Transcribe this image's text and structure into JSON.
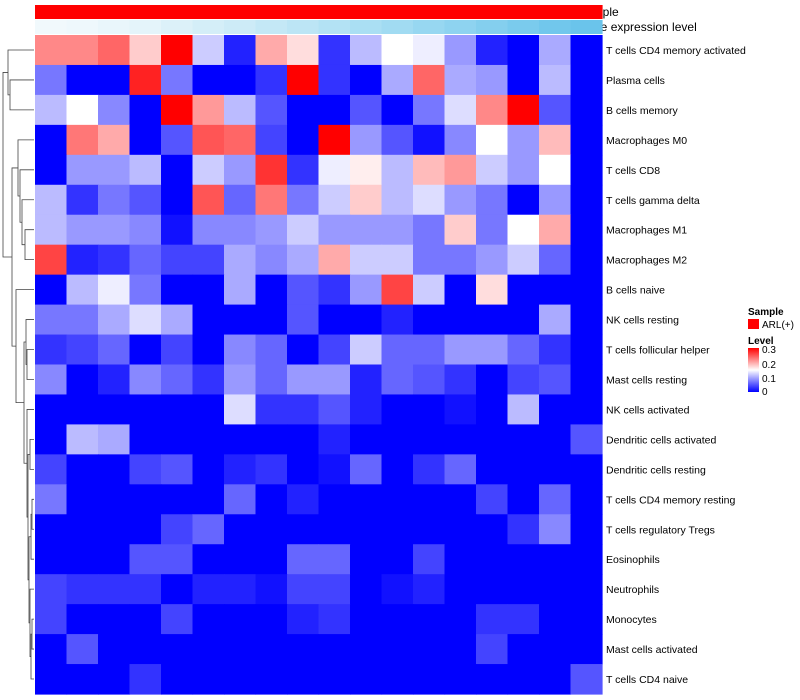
{
  "chart_data": {
    "type": "heatmap",
    "annotation_tracks": [
      {
        "name": "Sample",
        "colors": [
          "#ff0000",
          "#ff0000",
          "#ff0000",
          "#ff0000",
          "#ff0000",
          "#ff0000",
          "#ff0000",
          "#ff0000",
          "#ff0000",
          "#ff0000",
          "#ff0000",
          "#ff0000",
          "#ff0000",
          "#ff0000",
          "#ff0000",
          "#ff0000",
          "#ff0000",
          "#ff0000"
        ]
      },
      {
        "name": "Gene expression level",
        "colors": [
          "#f1f9fc",
          "#eef8fc",
          "#e9f6fb",
          "#e4f4fa",
          "#dcf1f9",
          "#d4eef8",
          "#cdebf7",
          "#c4e8f6",
          "#bce5f5",
          "#b3e2f4",
          "#aadff3",
          "#a1dbf2",
          "#97d7f1",
          "#8ed3f0",
          "#84cfee",
          "#7acbed",
          "#71c7ec",
          "#6ac4eb"
        ]
      }
    ],
    "rows": [
      "T cells CD4 memory activated",
      "Plasma cells",
      "B cells memory",
      "Macrophages M0",
      "T cells CD8",
      "T cells gamma delta",
      "Macrophages M1",
      "Macrophages M2",
      "B cells naive",
      "NK cells resting",
      "T cells follicular helper",
      "Mast cells resting",
      "NK cells activated",
      "Dendritic cells activated",
      "Dendritic cells resting",
      "T cells CD4 memory resting",
      "T cells regulatory  Tregs",
      "Eosinophils",
      "Neutrophils",
      "Monocytes",
      "Mast cells activated",
      "T cells CD4 naive"
    ],
    "values": [
      [
        0.22,
        0.22,
        0.24,
        0.18,
        0.3,
        0.12,
        0.02,
        0.2,
        0.17,
        0.03,
        0.11,
        0.15,
        0.14,
        0.09,
        0.02,
        0.0,
        0.1,
        0.0
      ],
      [
        0.07,
        0.0,
        0.0,
        0.28,
        0.07,
        0.0,
        0.0,
        0.03,
        0.3,
        0.03,
        0.0,
        0.1,
        0.24,
        0.1,
        0.09,
        0.0,
        0.11,
        0.0
      ],
      [
        0.11,
        0.15,
        0.08,
        0.0,
        0.3,
        0.21,
        0.11,
        0.05,
        0.0,
        0.0,
        0.05,
        0.0,
        0.07,
        0.13,
        0.22,
        0.3,
        0.05,
        0.0
      ],
      [
        0.0,
        0.23,
        0.2,
        0.0,
        0.05,
        0.25,
        0.24,
        0.04,
        0.0,
        0.3,
        0.09,
        0.05,
        0.01,
        0.08,
        0.15,
        0.09,
        0.19,
        0.0
      ],
      [
        0.0,
        0.09,
        0.09,
        0.11,
        0.0,
        0.12,
        0.09,
        0.27,
        0.03,
        0.14,
        0.16,
        0.11,
        0.19,
        0.21,
        0.12,
        0.09,
        0.15,
        0.0
      ],
      [
        0.11,
        0.03,
        0.07,
        0.05,
        0.0,
        0.25,
        0.06,
        0.23,
        0.07,
        0.12,
        0.18,
        0.11,
        0.13,
        0.09,
        0.07,
        0.0,
        0.09,
        0.0
      ],
      [
        0.11,
        0.09,
        0.09,
        0.08,
        0.01,
        0.08,
        0.08,
        0.09,
        0.12,
        0.09,
        0.09,
        0.09,
        0.07,
        0.18,
        0.07,
        0.15,
        0.2,
        0.0
      ],
      [
        0.26,
        0.02,
        0.03,
        0.06,
        0.04,
        0.04,
        0.1,
        0.08,
        0.1,
        0.2,
        0.12,
        0.12,
        0.07,
        0.07,
        0.09,
        0.12,
        0.06,
        0.0
      ],
      [
        0.0,
        0.11,
        0.14,
        0.07,
        0.0,
        0.0,
        0.1,
        0.0,
        0.05,
        0.03,
        0.09,
        0.26,
        0.12,
        0.0,
        0.17,
        0.0,
        0.0,
        0.0
      ],
      [
        0.07,
        0.07,
        0.1,
        0.13,
        0.1,
        0.0,
        0.0,
        0.0,
        0.05,
        0.0,
        0.0,
        0.02,
        0.0,
        0.0,
        0.0,
        0.0,
        0.1,
        0.0
      ],
      [
        0.03,
        0.04,
        0.06,
        0.0,
        0.04,
        0.0,
        0.08,
        0.06,
        0.0,
        0.04,
        0.12,
        0.06,
        0.06,
        0.09,
        0.09,
        0.06,
        0.03,
        0.0
      ],
      [
        0.08,
        0.0,
        0.02,
        0.08,
        0.06,
        0.03,
        0.09,
        0.06,
        0.09,
        0.09,
        0.02,
        0.06,
        0.05,
        0.03,
        0.0,
        0.04,
        0.05,
        0.0
      ],
      [
        0.0,
        0.0,
        0.0,
        0.0,
        0.0,
        0.0,
        0.13,
        0.03,
        0.03,
        0.05,
        0.02,
        0.0,
        0.0,
        0.01,
        0.0,
        0.11,
        0.0,
        0.0
      ],
      [
        0.0,
        0.11,
        0.1,
        0.0,
        0.0,
        0.0,
        0.0,
        0.0,
        0.0,
        0.02,
        0.0,
        0.0,
        0.0,
        0.0,
        0.0,
        0.0,
        0.0,
        0.05
      ],
      [
        0.04,
        0.0,
        0.0,
        0.04,
        0.05,
        0.0,
        0.02,
        0.03,
        0.0,
        0.01,
        0.06,
        0.0,
        0.03,
        0.06,
        0.0,
        0.0,
        0.0,
        0.0
      ],
      [
        0.07,
        0.0,
        0.0,
        0.0,
        0.0,
        0.0,
        0.06,
        0.0,
        0.02,
        0.0,
        0.0,
        0.0,
        0.0,
        0.0,
        0.04,
        0.0,
        0.06,
        0.0
      ],
      [
        0.0,
        0.0,
        0.0,
        0.0,
        0.04,
        0.06,
        0.0,
        0.0,
        0.0,
        0.0,
        0.0,
        0.0,
        0.0,
        0.0,
        0.0,
        0.03,
        0.08,
        0.0
      ],
      [
        0.0,
        0.0,
        0.0,
        0.05,
        0.05,
        0.0,
        0.0,
        0.0,
        0.06,
        0.06,
        0.0,
        0.0,
        0.04,
        0.0,
        0.0,
        0.0,
        0.0,
        0.0
      ],
      [
        0.04,
        0.03,
        0.03,
        0.03,
        0.0,
        0.02,
        0.02,
        0.01,
        0.04,
        0.04,
        0.0,
        0.01,
        0.02,
        0.0,
        0.0,
        0.0,
        0.0,
        0.0
      ],
      [
        0.04,
        0.0,
        0.0,
        0.0,
        0.04,
        0.0,
        0.0,
        0.0,
        0.02,
        0.03,
        0.0,
        0.0,
        0.0,
        0.0,
        0.03,
        0.03,
        0.0,
        0.0
      ],
      [
        0.0,
        0.05,
        0.0,
        0.0,
        0.0,
        0.0,
        0.0,
        0.0,
        0.0,
        0.0,
        0.0,
        0.0,
        0.0,
        0.0,
        0.04,
        0.0,
        0.0,
        0.0
      ],
      [
        0.0,
        0.0,
        0.0,
        0.03,
        0.0,
        0.0,
        0.0,
        0.0,
        0.0,
        0.0,
        0.0,
        0.0,
        0.0,
        0.0,
        0.0,
        0.0,
        0.0,
        0.05
      ]
    ],
    "color_scale": {
      "min": 0,
      "mid": 0.15,
      "max": 0.3,
      "low": "#0000ff",
      "midcolor": "#ffffff",
      "high": "#ff0000"
    },
    "legend": {
      "sample_title": "Sample",
      "sample_entry": "ARL(+)",
      "sample_color": "#ff0000",
      "level_title": "Level",
      "ticks": [
        "0.3",
        "0.2",
        "0.1",
        "0"
      ]
    },
    "dendrogram": "left"
  }
}
